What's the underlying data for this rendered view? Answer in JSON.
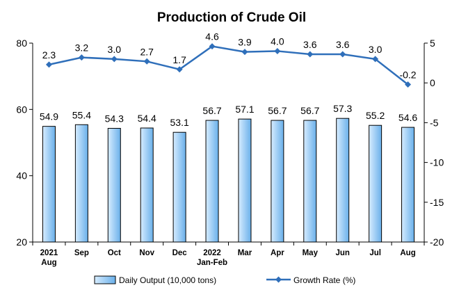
{
  "chart_data": {
    "type": "bar+line",
    "title": "Production of Crude Oil",
    "categories": [
      [
        "2021",
        "Aug"
      ],
      [
        "Sep"
      ],
      [
        "Oct"
      ],
      [
        "Nov"
      ],
      [
        "Dec"
      ],
      [
        "2022",
        "Jan-Feb"
      ],
      [
        "Mar"
      ],
      [
        "Apr"
      ],
      [
        "May"
      ],
      [
        "Jun"
      ],
      [
        "Jul"
      ],
      [
        "Aug"
      ]
    ],
    "series": [
      {
        "name": "Daily Output (10,000 tons)",
        "type": "bar",
        "axis": "left",
        "values": [
          54.9,
          55.4,
          54.3,
          54.4,
          53.1,
          56.7,
          57.1,
          56.7,
          56.7,
          57.3,
          55.2,
          54.6
        ],
        "labels": [
          "54.9",
          "55.4",
          "54.3",
          "54.4",
          "53.1",
          "56.7",
          "57.1",
          "56.7",
          "56.7",
          "57.3",
          "55.2",
          "54.6"
        ]
      },
      {
        "name": "Growth Rate (%)",
        "type": "line",
        "axis": "right",
        "values": [
          2.3,
          3.2,
          3.0,
          2.7,
          1.7,
          4.6,
          3.9,
          4.0,
          3.6,
          3.6,
          3.0,
          -0.2
        ],
        "labels": [
          "2.3",
          "3.2",
          "3.0",
          "2.7",
          "1.7",
          "4.6",
          "3.9",
          "4.0",
          "3.6",
          "3.6",
          "3.0",
          "-0.2"
        ]
      }
    ],
    "y_left": {
      "min": 20,
      "max": 80,
      "ticks": [
        "20",
        "40",
        "60",
        "80"
      ]
    },
    "y_right": {
      "min": -20,
      "max": 5,
      "ticks": [
        "5",
        "0",
        "-5",
        "-10",
        "-15",
        "-20"
      ]
    },
    "grid": false,
    "legend": "bottom",
    "colors": {
      "bar_fill_light": "#d6ecff",
      "bar_fill_dark": "#6ab0ea",
      "bar_stroke": "#000000",
      "line": "#2f6fba",
      "marker": "#2f6fba"
    }
  }
}
